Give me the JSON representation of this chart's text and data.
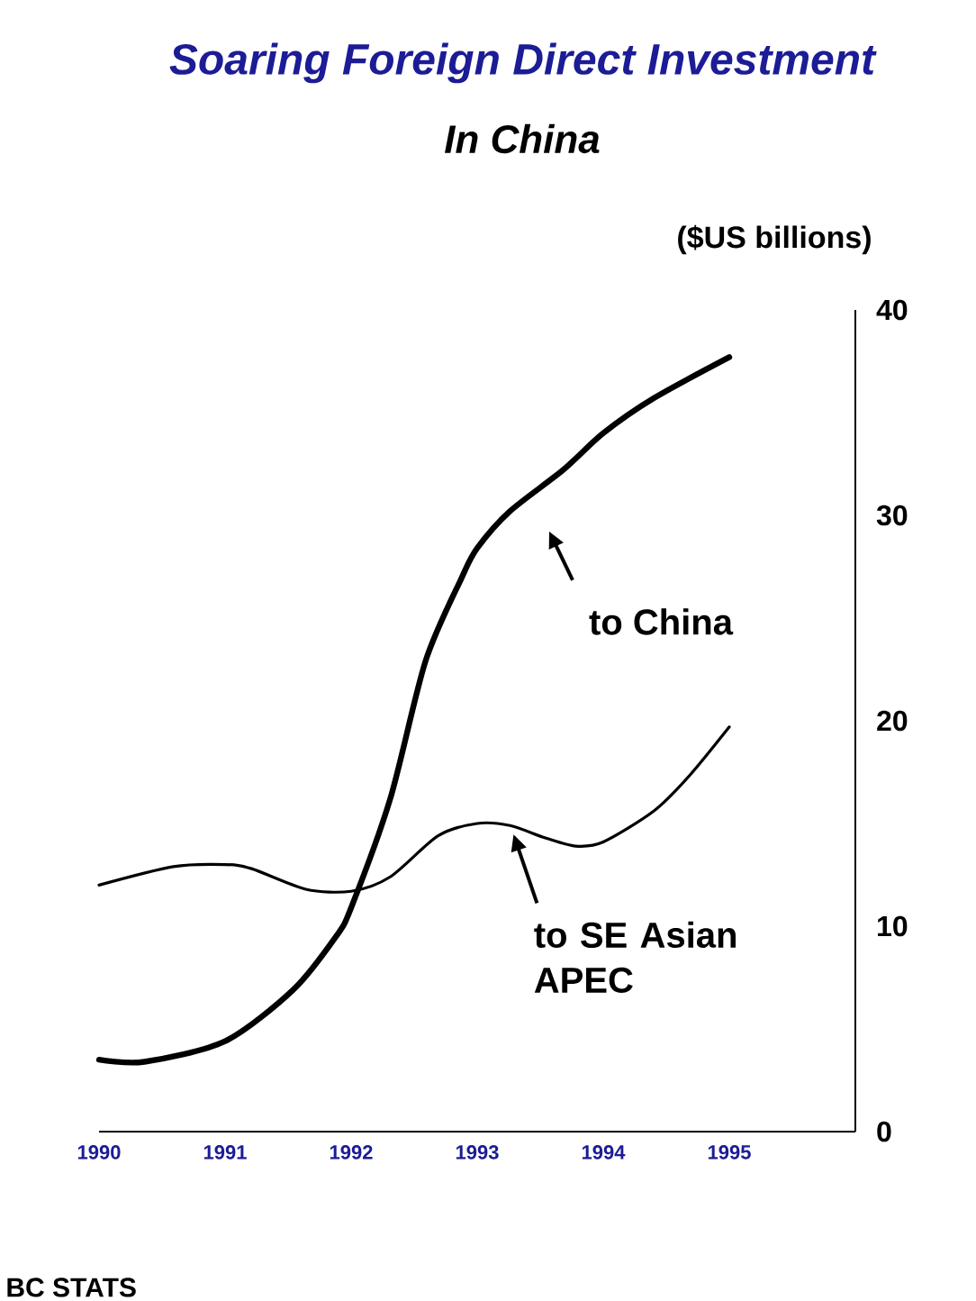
{
  "chart_data": {
    "type": "line",
    "title": "Soaring Foreign Direct Investment",
    "subtitle": "In China",
    "ylabel": "($US billions)",
    "xlim": [
      1990,
      1996
    ],
    "xticks": [
      1990,
      1991,
      1992,
      1993,
      1994,
      1995
    ],
    "ylim": [
      0,
      40
    ],
    "yticks": [
      0,
      10,
      20,
      30,
      40
    ],
    "grid": false,
    "annotations": [
      "to China",
      {
        "text": "to SE Asian APEC",
        "x": 1993.26,
        "y": 14.9
      },
      "BC STATS"
    ],
    "series": [
      {
        "color": "#000000",
        "x": [
          1990,
          1990.36,
          1991,
          1991.54,
          1991.88,
          1992,
          1992.31,
          1992.59,
          1992.88,
          1993,
          1993.26,
          1993.68,
          1994,
          1994.4,
          1995
        ],
        "values": [
          3.5,
          3.4,
          4.4,
          6.9,
          9.5,
          10.9,
          16.2,
          22.9,
          27.0,
          28.4,
          30.2,
          32.2,
          34.0,
          35.7,
          37.7
        ]
      },
      {
        "color": "#000000",
        "x": [
          1990,
          1990.59,
          1991,
          1991.21,
          1991.64,
          1992,
          1992.31,
          1992.69,
          1993,
          1993.26,
          1993.54,
          1993.78,
          1994,
          1994.4,
          1994.68,
          1995
        ],
        "values": [
          12.0,
          12.9,
          13.0,
          12.8,
          11.8,
          11.7,
          12.4,
          14.4,
          15.0,
          14.9,
          14.3,
          13.9,
          14.1,
          15.6,
          17.3,
          19.7
        ]
      }
    ]
  }
}
